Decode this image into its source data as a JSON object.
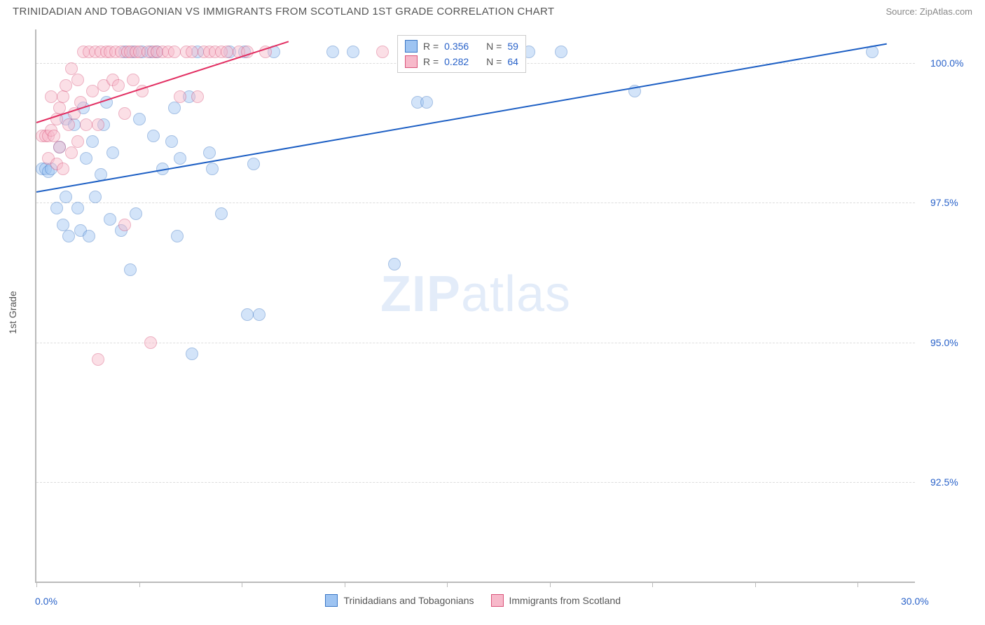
{
  "meta": {
    "title": "TRINIDADIAN AND TOBAGONIAN VS IMMIGRANTS FROM SCOTLAND 1ST GRADE CORRELATION CHART",
    "source": "Source: ZipAtlas.com",
    "watermark_a": "ZIP",
    "watermark_b": "atlas"
  },
  "chart": {
    "type": "scatter",
    "background_color": "#ffffff",
    "grid_color": "#dddddd",
    "axis_color": "#bbbbbb",
    "yaxis_title": "1st Grade",
    "yaxis_title_fontsize": 14,
    "yaxis_title_color": "#555555",
    "xlim": [
      0,
      30
    ],
    "ylim": [
      90.7,
      100.6
    ],
    "yticks": [
      {
        "v": 92.5,
        "label": "92.5%"
      },
      {
        "v": 95.0,
        "label": "95.0%"
      },
      {
        "v": 97.5,
        "label": "97.5%"
      },
      {
        "v": 100.0,
        "label": "100.0%"
      }
    ],
    "ytick_color": "#2962c9",
    "xticks_minor": [
      0,
      3.5,
      7,
      10.5,
      14,
      17.5,
      21,
      24.5,
      28
    ],
    "xaxis_label_left": "0.0%",
    "xaxis_label_right": "30.0%",
    "xaxis_label_color": "#2962c9",
    "marker_radius": 9,
    "marker_opacity": 0.45,
    "marker_border_width": 1.2
  },
  "series": [
    {
      "id": "tt",
      "name": "Trinidadians and Tobagonians",
      "fill": "#9ec4f2",
      "stroke": "#3a76c5",
      "line_color": "#1d5fc4",
      "R": "0.356",
      "N": "59",
      "trend": {
        "x1": 0,
        "y1": 97.7,
        "x2": 29.0,
        "y2": 100.35
      },
      "points": [
        [
          0.2,
          98.1
        ],
        [
          0.3,
          98.1
        ],
        [
          0.4,
          98.05
        ],
        [
          0.5,
          98.1
        ],
        [
          0.7,
          97.4
        ],
        [
          0.8,
          98.5
        ],
        [
          0.9,
          97.1
        ],
        [
          1.0,
          97.6
        ],
        [
          1.0,
          99.0
        ],
        [
          1.1,
          96.9
        ],
        [
          1.3,
          98.9
        ],
        [
          1.4,
          97.4
        ],
        [
          1.5,
          97.0
        ],
        [
          1.6,
          99.2
        ],
        [
          1.7,
          98.3
        ],
        [
          1.8,
          96.9
        ],
        [
          1.9,
          98.6
        ],
        [
          2.0,
          97.6
        ],
        [
          2.2,
          98.0
        ],
        [
          2.3,
          98.9
        ],
        [
          2.4,
          99.3
        ],
        [
          2.5,
          97.2
        ],
        [
          2.6,
          98.4
        ],
        [
          2.9,
          97.0
        ],
        [
          3.0,
          100.2
        ],
        [
          3.2,
          96.3
        ],
        [
          3.3,
          100.2
        ],
        [
          3.4,
          97.3
        ],
        [
          3.5,
          99.0
        ],
        [
          3.6,
          100.2
        ],
        [
          3.9,
          100.2
        ],
        [
          4.0,
          98.7
        ],
        [
          4.1,
          100.2
        ],
        [
          4.3,
          98.1
        ],
        [
          4.6,
          98.6
        ],
        [
          4.7,
          99.2
        ],
        [
          4.8,
          96.9
        ],
        [
          4.9,
          98.3
        ],
        [
          5.2,
          99.4
        ],
        [
          5.3,
          94.8
        ],
        [
          5.5,
          100.2
        ],
        [
          5.9,
          98.4
        ],
        [
          6.0,
          98.1
        ],
        [
          6.3,
          97.3
        ],
        [
          6.6,
          100.2
        ],
        [
          7.1,
          100.2
        ],
        [
          7.2,
          95.5
        ],
        [
          7.4,
          98.2
        ],
        [
          7.6,
          95.5
        ],
        [
          8.1,
          100.2
        ],
        [
          10.1,
          100.2
        ],
        [
          10.8,
          100.2
        ],
        [
          12.2,
          96.4
        ],
        [
          13.0,
          99.3
        ],
        [
          13.3,
          99.3
        ],
        [
          16.8,
          100.2
        ],
        [
          17.9,
          100.2
        ],
        [
          20.4,
          99.5
        ],
        [
          28.5,
          100.2
        ]
      ]
    },
    {
      "id": "sc",
      "name": "Immigrants from Scotland",
      "fill": "#f7b9ca",
      "stroke": "#d9547a",
      "line_color": "#e22f62",
      "R": "0.282",
      "N": "64",
      "trend": {
        "x1": 0,
        "y1": 98.95,
        "x2": 8.6,
        "y2": 100.4
      },
      "points": [
        [
          0.2,
          98.7
        ],
        [
          0.3,
          98.7
        ],
        [
          0.4,
          98.7
        ],
        [
          0.4,
          98.3
        ],
        [
          0.5,
          98.8
        ],
        [
          0.5,
          99.4
        ],
        [
          0.6,
          98.7
        ],
        [
          0.7,
          99.0
        ],
        [
          0.7,
          98.2
        ],
        [
          0.8,
          99.2
        ],
        [
          0.8,
          98.5
        ],
        [
          0.9,
          99.4
        ],
        [
          0.9,
          98.1
        ],
        [
          1.0,
          99.6
        ],
        [
          1.1,
          98.9
        ],
        [
          1.2,
          99.9
        ],
        [
          1.2,
          98.4
        ],
        [
          1.3,
          99.1
        ],
        [
          1.4,
          99.7
        ],
        [
          1.4,
          98.6
        ],
        [
          1.5,
          99.3
        ],
        [
          1.6,
          100.2
        ],
        [
          1.7,
          98.9
        ],
        [
          1.8,
          100.2
        ],
        [
          1.9,
          99.5
        ],
        [
          2.0,
          100.2
        ],
        [
          2.1,
          98.9
        ],
        [
          2.2,
          100.2
        ],
        [
          2.3,
          99.6
        ],
        [
          2.4,
          100.2
        ],
        [
          2.5,
          100.2
        ],
        [
          2.6,
          99.7
        ],
        [
          2.7,
          100.2
        ],
        [
          2.8,
          99.6
        ],
        [
          2.9,
          100.2
        ],
        [
          3.0,
          99.1
        ],
        [
          3.1,
          100.2
        ],
        [
          3.2,
          100.2
        ],
        [
          3.3,
          99.7
        ],
        [
          3.4,
          100.2
        ],
        [
          3.5,
          100.2
        ],
        [
          3.6,
          99.5
        ],
        [
          3.8,
          100.2
        ],
        [
          3.9,
          95.0
        ],
        [
          4.0,
          100.2
        ],
        [
          4.1,
          100.2
        ],
        [
          4.3,
          100.2
        ],
        [
          4.5,
          100.2
        ],
        [
          4.7,
          100.2
        ],
        [
          4.9,
          99.4
        ],
        [
          5.1,
          100.2
        ],
        [
          5.3,
          100.2
        ],
        [
          5.5,
          99.4
        ],
        [
          5.7,
          100.2
        ],
        [
          5.9,
          100.2
        ],
        [
          6.1,
          100.2
        ],
        [
          6.3,
          100.2
        ],
        [
          6.5,
          100.2
        ],
        [
          6.9,
          100.2
        ],
        [
          2.1,
          94.7
        ],
        [
          3.0,
          97.1
        ],
        [
          7.2,
          100.2
        ],
        [
          7.8,
          100.2
        ],
        [
          11.8,
          100.2
        ]
      ]
    }
  ],
  "legend_top": {
    "R_label": "R =",
    "N_label": "N =",
    "label_color": "#555555",
    "value_color": "#2962c9"
  },
  "legend_bottom": {
    "text_color": "#555555"
  }
}
